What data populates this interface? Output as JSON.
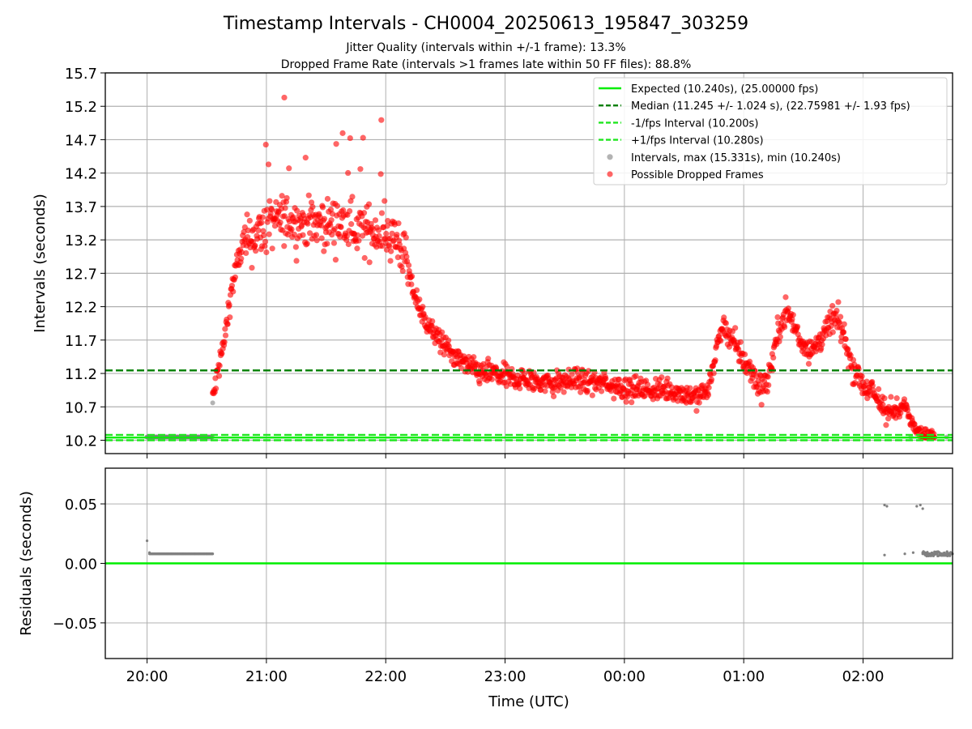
{
  "title": "Timestamp Intervals - CH0004_20250613_195847_303259",
  "subtitle_1": "Jitter Quality (intervals within +/-1 frame): 13.3%",
  "subtitle_2": "Dropped Frame Rate (intervals >1 frames late within 50 FF files): 88.8%",
  "colors": {
    "expected": "#00ee00",
    "median": "#007f00",
    "fps_interval": "#1ee61e",
    "intervals": "#808080",
    "dropped": "#ff0000",
    "grid": "#b0b0b0"
  },
  "chart_data": [
    {
      "type": "scatter",
      "ylabel": "Intervals (seconds)",
      "ylim": [
        10.0,
        15.7
      ],
      "yticks": [
        "10.2",
        "10.7",
        "11.2",
        "11.7",
        "12.2",
        "12.7",
        "13.2",
        "13.7",
        "14.2",
        "14.7",
        "15.2",
        "15.7"
      ],
      "grid": "horizontal",
      "legend_position": "top-right",
      "reference_lines": {
        "expected": 10.24,
        "median": 11.245,
        "minus_fps": 10.2,
        "plus_fps": 10.28
      },
      "legend": [
        "Expected (10.240s), (25.00000 fps)",
        "Median (11.245 +/- 1.024 s), (22.75981 +/- 1.93 fps)",
        "-1/fps Interval (10.200s)",
        "+1/fps Interval (10.280s)",
        "Intervals, max (15.331s), min (10.240s)",
        "Possible Dropped Frames"
      ],
      "normal_intervals": {
        "time_hours": [
          20.0,
          20.1,
          20.2,
          20.3,
          20.4,
          20.5,
          20.55,
          26.4,
          26.5,
          26.6,
          26.7
        ],
        "values": [
          10.248,
          10.248,
          10.248,
          10.248,
          10.248,
          10.248,
          10.76,
          10.248,
          10.248,
          10.248,
          10.248
        ]
      },
      "dropped_trend": {
        "time_hours": [
          20.55,
          20.6,
          20.65,
          20.7,
          20.75,
          20.8,
          20.9,
          21.0,
          21.1,
          21.2,
          21.3,
          21.4,
          21.5,
          21.6,
          21.7,
          21.8,
          21.9,
          22.0,
          22.1,
          22.15,
          22.2,
          22.3,
          22.4,
          22.5,
          22.6,
          22.7,
          22.8,
          22.9,
          23.0,
          23.2,
          23.4,
          23.6,
          23.8,
          24.0,
          24.2,
          24.4,
          24.5,
          24.6,
          24.7,
          24.8,
          24.85,
          24.9,
          25.0,
          25.1,
          25.15,
          25.2,
          25.3,
          25.35,
          25.4,
          25.45,
          25.5,
          25.55,
          25.6,
          25.65,
          25.7,
          25.75,
          25.8,
          25.85,
          25.9,
          26.0,
          26.1,
          26.2,
          26.3,
          26.35,
          26.4,
          26.5,
          26.6
        ],
        "values": [
          10.8,
          11.3,
          11.7,
          12.4,
          12.8,
          13.1,
          13.25,
          13.4,
          13.5,
          13.5,
          13.45,
          13.45,
          13.45,
          13.45,
          13.4,
          13.35,
          13.35,
          13.3,
          13.2,
          13.0,
          12.6,
          12.1,
          11.8,
          11.6,
          11.4,
          11.3,
          11.2,
          11.2,
          11.15,
          11.1,
          11.05,
          11.1,
          11.05,
          11.0,
          10.95,
          10.95,
          10.9,
          10.85,
          10.95,
          11.8,
          11.9,
          11.7,
          11.4,
          11.1,
          11.0,
          11.1,
          11.9,
          12.15,
          12.0,
          11.8,
          11.65,
          11.55,
          11.6,
          11.75,
          11.85,
          12.05,
          11.95,
          11.7,
          11.35,
          11.05,
          10.85,
          10.65,
          10.6,
          10.75,
          10.5,
          10.3,
          10.25
        ],
        "max": 15.331
      },
      "xlim_hours": [
        19.65,
        26.75
      ]
    },
    {
      "type": "scatter",
      "xlabel": "Time (UTC)",
      "ylabel": "Residuals (seconds)",
      "ylim": [
        -0.08,
        0.08
      ],
      "yticks": [
        "−0.05",
        "0.00",
        "0.05"
      ],
      "ytick_values": [
        -0.05,
        0.0,
        0.05
      ],
      "xticks": [
        "20:00",
        "21:00",
        "22:00",
        "23:00",
        "00:00",
        "01:00",
        "02:00"
      ],
      "xtick_hours": [
        20,
        21,
        22,
        23,
        24,
        25,
        26
      ],
      "grid": "both",
      "zero_line": 0.0,
      "residual_points": {
        "time_hours": [
          20.0,
          20.02,
          20.1,
          20.2,
          20.3,
          20.4,
          20.5,
          20.55,
          26.18,
          26.2,
          26.18,
          26.35,
          26.42,
          26.45,
          26.48,
          26.5,
          26.5,
          26.55,
          26.6,
          26.65,
          26.7,
          26.75
        ],
        "values": [
          0.019,
          0.009,
          0.008,
          0.008,
          0.008,
          0.008,
          0.008,
          0.008,
          0.007,
          0.048,
          0.049,
          0.008,
          0.009,
          0.048,
          0.049,
          0.046,
          0.008,
          0.007,
          0.008,
          0.008,
          0.008,
          0.008
        ]
      },
      "xlim_hours": [
        19.65,
        26.75
      ]
    }
  ]
}
